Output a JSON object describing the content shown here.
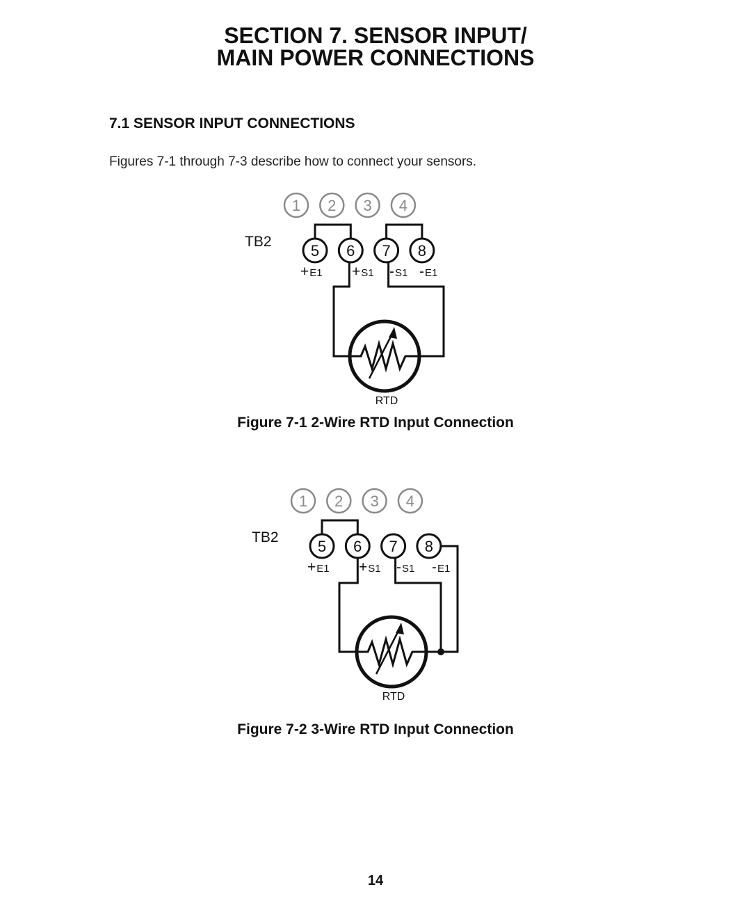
{
  "header": {
    "title_line1": "SECTION 7.  SENSOR INPUT/",
    "title_line2": "MAIN POWER CONNECTIONS"
  },
  "section": {
    "heading": "7.1  SENSOR INPUT CONNECTIONS",
    "intro": "Figures 7-1 through 7-3 describe how to connect your sensors."
  },
  "figures": [
    {
      "terminals_top": [
        "1",
        "2",
        "3",
        "4"
      ],
      "block": "TB2",
      "terminals": [
        "5",
        "6",
        "7",
        "8"
      ],
      "pin_labels": [
        {
          "sign": "+",
          "name": "E1"
        },
        {
          "sign": "+",
          "name": "S1"
        },
        {
          "sign": "-",
          "name": "S1"
        },
        {
          "sign": "-",
          "name": "E1"
        }
      ],
      "sensor": "RTD",
      "caption": "Figure 7-1  2-Wire RTD Input Connection"
    },
    {
      "terminals_top": [
        "1",
        "2",
        "3",
        "4"
      ],
      "block": "TB2",
      "terminals": [
        "5",
        "6",
        "7",
        "8"
      ],
      "pin_labels": [
        {
          "sign": "+",
          "name": "E1"
        },
        {
          "sign": "+",
          "name": "S1"
        },
        {
          "sign": "-",
          "name": "S1"
        },
        {
          "sign": "-",
          "name": "E1"
        }
      ],
      "sensor": "RTD",
      "caption": "Figure 7-2  3-Wire RTD Input Connection"
    }
  ],
  "page_number": "14"
}
